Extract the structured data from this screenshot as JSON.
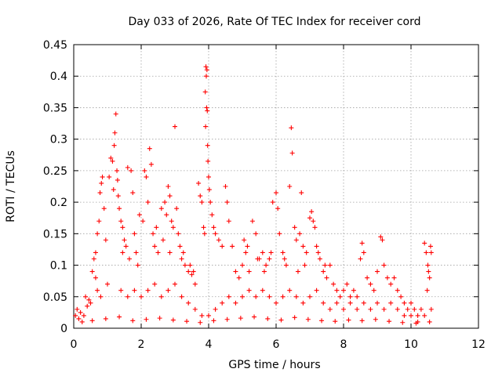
{
  "chart_data": {
    "type": "scatter",
    "title": "Day 033 of 2026, Rate Of TEC Index for receiver cord",
    "xlabel": "GPS time / hours",
    "ylabel": "ROTI / TECUs",
    "xlim": [
      0,
      12
    ],
    "ylim": [
      0,
      0.45
    ],
    "xticks": [
      0,
      2,
      4,
      6,
      8,
      10,
      12
    ],
    "xtick_labels": [
      "0",
      "2",
      "4",
      "6",
      "8",
      "10",
      "12"
    ],
    "yticks": [
      0,
      0.05,
      0.1,
      0.15,
      0.2,
      0.25,
      0.3,
      0.35,
      0.4,
      0.45
    ],
    "ytick_labels": [
      "0",
      "0.05",
      "0.1",
      "0.15",
      "0.2",
      "0.25",
      "0.3",
      "0.35",
      "0.4",
      "0.45"
    ],
    "grid": true,
    "marker": "+",
    "color": "#ff0000",
    "series": [
      {
        "name": "ROTI",
        "points": [
          [
            0.85,
            0.24
          ],
          [
            0.82,
            0.23
          ],
          [
            0.78,
            0.215
          ],
          [
            0.9,
            0.19
          ],
          [
            0.75,
            0.17
          ],
          [
            0.7,
            0.15
          ],
          [
            0.95,
            0.14
          ],
          [
            0.65,
            0.12
          ],
          [
            0.6,
            0.11
          ],
          [
            0.55,
            0.09
          ],
          [
            1.05,
            0.24
          ],
          [
            1.1,
            0.27
          ],
          [
            1.15,
            0.265
          ],
          [
            1.25,
            0.34
          ],
          [
            1.22,
            0.31
          ],
          [
            1.2,
            0.29
          ],
          [
            1.28,
            0.25
          ],
          [
            1.3,
            0.235
          ],
          [
            1.18,
            0.22
          ],
          [
            1.32,
            0.21
          ],
          [
            1.35,
            0.19
          ],
          [
            1.4,
            0.17
          ],
          [
            1.45,
            0.16
          ],
          [
            1.5,
            0.14
          ],
          [
            1.55,
            0.13
          ],
          [
            1.6,
            0.255
          ],
          [
            1.7,
            0.25
          ],
          [
            1.75,
            0.215
          ],
          [
            1.8,
            0.15
          ],
          [
            1.85,
            0.12
          ],
          [
            2.1,
            0.25
          ],
          [
            2.15,
            0.24
          ],
          [
            2.2,
            0.2
          ],
          [
            2.25,
            0.285
          ],
          [
            2.3,
            0.26
          ],
          [
            2.05,
            0.17
          ],
          [
            1.95,
            0.18
          ],
          [
            2.35,
            0.15
          ],
          [
            2.4,
            0.13
          ],
          [
            2.5,
            0.12
          ],
          [
            2.6,
            0.19
          ],
          [
            2.7,
            0.2
          ],
          [
            2.75,
            0.18
          ],
          [
            2.8,
            0.225
          ],
          [
            2.85,
            0.21
          ],
          [
            2.9,
            0.17
          ],
          [
            2.95,
            0.16
          ],
          [
            3.0,
            0.32
          ],
          [
            3.05,
            0.19
          ],
          [
            3.1,
            0.15
          ],
          [
            3.2,
            0.11
          ],
          [
            3.3,
            0.1
          ],
          [
            3.4,
            0.09
          ],
          [
            3.5,
            0.085
          ],
          [
            3.6,
            0.07
          ],
          [
            3.7,
            0.23
          ],
          [
            3.75,
            0.21
          ],
          [
            3.8,
            0.2
          ],
          [
            3.85,
            0.16
          ],
          [
            3.88,
            0.15
          ],
          [
            3.92,
            0.415
          ],
          [
            3.95,
            0.41
          ],
          [
            3.93,
            0.4
          ],
          [
            3.9,
            0.375
          ],
          [
            3.94,
            0.35
          ],
          [
            3.96,
            0.345
          ],
          [
            3.91,
            0.32
          ],
          [
            3.97,
            0.29
          ],
          [
            3.98,
            0.265
          ],
          [
            4.0,
            0.24
          ],
          [
            4.02,
            0.22
          ],
          [
            4.05,
            0.2
          ],
          [
            4.1,
            0.18
          ],
          [
            4.15,
            0.16
          ],
          [
            4.2,
            0.15
          ],
          [
            4.3,
            0.14
          ],
          [
            4.4,
            0.13
          ],
          [
            4.5,
            0.225
          ],
          [
            4.55,
            0.2
          ],
          [
            4.6,
            0.17
          ],
          [
            4.7,
            0.13
          ],
          [
            4.8,
            0.09
          ],
          [
            4.9,
            0.08
          ],
          [
            5.0,
            0.1
          ],
          [
            5.1,
            0.12
          ],
          [
            5.2,
            0.09
          ],
          [
            5.3,
            0.17
          ],
          [
            5.4,
            0.15
          ],
          [
            5.5,
            0.11
          ],
          [
            5.6,
            0.12
          ],
          [
            5.7,
            0.1
          ],
          [
            5.8,
            0.11
          ],
          [
            5.9,
            0.2
          ],
          [
            6.0,
            0.215
          ],
          [
            6.05,
            0.19
          ],
          [
            6.1,
            0.15
          ],
          [
            6.2,
            0.12
          ],
          [
            6.3,
            0.1
          ],
          [
            6.4,
            0.225
          ],
          [
            6.45,
            0.318
          ],
          [
            6.48,
            0.278
          ],
          [
            6.55,
            0.16
          ],
          [
            6.6,
            0.14
          ],
          [
            6.7,
            0.15
          ],
          [
            6.75,
            0.215
          ],
          [
            6.8,
            0.13
          ],
          [
            6.9,
            0.12
          ],
          [
            7.0,
            0.175
          ],
          [
            7.05,
            0.185
          ],
          [
            7.1,
            0.17
          ],
          [
            7.15,
            0.16
          ],
          [
            7.2,
            0.13
          ],
          [
            7.3,
            0.11
          ],
          [
            7.4,
            0.09
          ],
          [
            7.5,
            0.08
          ],
          [
            7.6,
            0.1
          ],
          [
            7.7,
            0.07
          ],
          [
            7.8,
            0.06
          ],
          [
            7.9,
            0.05
          ],
          [
            8.0,
            0.06
          ],
          [
            8.1,
            0.07
          ],
          [
            8.2,
            0.05
          ],
          [
            8.3,
            0.06
          ],
          [
            8.4,
            0.05
          ],
          [
            8.5,
            0.11
          ],
          [
            8.55,
            0.135
          ],
          [
            8.6,
            0.12
          ],
          [
            8.7,
            0.08
          ],
          [
            8.8,
            0.07
          ],
          [
            8.9,
            0.06
          ],
          [
            9.0,
            0.09
          ],
          [
            9.1,
            0.145
          ],
          [
            9.15,
            0.14
          ],
          [
            9.2,
            0.1
          ],
          [
            9.3,
            0.08
          ],
          [
            9.4,
            0.07
          ],
          [
            9.5,
            0.08
          ],
          [
            9.6,
            0.06
          ],
          [
            9.7,
            0.05
          ],
          [
            9.8,
            0.04
          ],
          [
            9.9,
            0.03
          ],
          [
            10.0,
            0.04
          ],
          [
            10.1,
            0.03
          ],
          [
            10.2,
            0.02
          ],
          [
            10.3,
            0.03
          ],
          [
            10.4,
            0.135
          ],
          [
            10.45,
            0.12
          ],
          [
            10.5,
            0.1
          ],
          [
            10.55,
            0.08
          ],
          [
            10.6,
            0.12
          ],
          [
            10.58,
            0.13
          ],
          [
            10.52,
            0.09
          ],
          [
            10.48,
            0.06
          ],
          [
            0.1,
            0.03
          ],
          [
            0.2,
            0.025
          ],
          [
            0.3,
            0.02
          ],
          [
            0.4,
            0.035
          ],
          [
            0.5,
            0.04
          ],
          [
            0.15,
            0.015
          ],
          [
            0.05,
            0.02
          ],
          [
            0.35,
            0.05
          ],
          [
            0.45,
            0.045
          ],
          [
            0.7,
            0.06
          ],
          [
            0.8,
            0.05
          ],
          [
            1.0,
            0.07
          ],
          [
            1.4,
            0.06
          ],
          [
            1.6,
            0.05
          ],
          [
            1.8,
            0.06
          ],
          [
            2.0,
            0.05
          ],
          [
            2.2,
            0.06
          ],
          [
            2.4,
            0.07
          ],
          [
            2.6,
            0.05
          ],
          [
            2.8,
            0.06
          ],
          [
            3.0,
            0.07
          ],
          [
            3.2,
            0.05
          ],
          [
            3.4,
            0.04
          ],
          [
            3.6,
            0.03
          ],
          [
            3.8,
            0.02
          ],
          [
            4.0,
            0.02
          ],
          [
            4.2,
            0.03
          ],
          [
            4.4,
            0.04
          ],
          [
            4.6,
            0.05
          ],
          [
            4.8,
            0.04
          ],
          [
            5.0,
            0.05
          ],
          [
            5.2,
            0.06
          ],
          [
            5.4,
            0.05
          ],
          [
            5.6,
            0.06
          ],
          [
            5.8,
            0.05
          ],
          [
            6.0,
            0.04
          ],
          [
            6.2,
            0.05
          ],
          [
            6.4,
            0.06
          ],
          [
            6.6,
            0.05
          ],
          [
            6.8,
            0.04
          ],
          [
            7.0,
            0.05
          ],
          [
            7.2,
            0.06
          ],
          [
            7.4,
            0.04
          ],
          [
            7.6,
            0.03
          ],
          [
            7.8,
            0.04
          ],
          [
            8.0,
            0.03
          ],
          [
            8.2,
            0.04
          ],
          [
            8.4,
            0.03
          ],
          [
            8.6,
            0.04
          ],
          [
            8.8,
            0.03
          ],
          [
            9.0,
            0.04
          ],
          [
            9.2,
            0.03
          ],
          [
            9.4,
            0.04
          ],
          [
            9.6,
            0.03
          ],
          [
            9.8,
            0.02
          ],
          [
            10.0,
            0.02
          ],
          [
            10.2,
            0.01
          ],
          [
            10.4,
            0.02
          ],
          [
            10.6,
            0.03
          ],
          [
            0.25,
            0.01
          ],
          [
            0.55,
            0.012
          ],
          [
            0.95,
            0.015
          ],
          [
            1.35,
            0.018
          ],
          [
            1.75,
            0.012
          ],
          [
            2.15,
            0.014
          ],
          [
            2.55,
            0.016
          ],
          [
            2.95,
            0.013
          ],
          [
            3.35,
            0.011
          ],
          [
            3.75,
            0.009
          ],
          [
            4.15,
            0.012
          ],
          [
            4.55,
            0.014
          ],
          [
            4.95,
            0.016
          ],
          [
            5.35,
            0.018
          ],
          [
            5.75,
            0.015
          ],
          [
            6.15,
            0.013
          ],
          [
            6.55,
            0.017
          ],
          [
            6.95,
            0.014
          ],
          [
            7.35,
            0.012
          ],
          [
            7.75,
            0.011
          ],
          [
            8.15,
            0.013
          ],
          [
            8.55,
            0.012
          ],
          [
            8.95,
            0.014
          ],
          [
            9.35,
            0.011
          ],
          [
            9.75,
            0.009
          ],
          [
            10.15,
            0.008
          ],
          [
            10.55,
            0.01
          ],
          [
            5.05,
            0.14
          ],
          [
            5.15,
            0.13
          ],
          [
            5.45,
            0.11
          ],
          [
            5.65,
            0.09
          ],
          [
            5.85,
            0.12
          ],
          [
            6.25,
            0.11
          ],
          [
            6.65,
            0.09
          ],
          [
            6.85,
            0.1
          ],
          [
            7.25,
            0.12
          ],
          [
            7.45,
            0.1
          ],
          [
            3.15,
            0.13
          ],
          [
            3.25,
            0.12
          ],
          [
            3.45,
            0.1
          ],
          [
            3.55,
            0.09
          ],
          [
            2.45,
            0.16
          ],
          [
            2.65,
            0.14
          ],
          [
            2.85,
            0.12
          ],
          [
            1.45,
            0.12
          ],
          [
            1.65,
            0.11
          ],
          [
            1.9,
            0.1
          ],
          [
            0.65,
            0.08
          ]
        ]
      }
    ]
  }
}
